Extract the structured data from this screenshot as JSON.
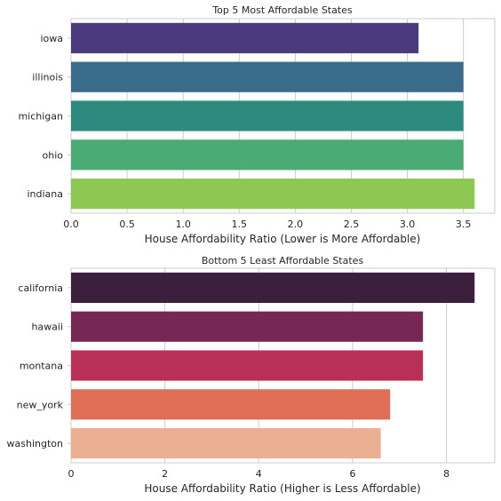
{
  "chart_data": [
    {
      "type": "bar",
      "orientation": "horizontal",
      "title": "Top 5 Most Affordable States",
      "xlabel": "House Affordability Ratio (Lower is More Affordable)",
      "ylabel": "",
      "categories": [
        "iowa",
        "illinois",
        "michigan",
        "ohio",
        "indiana"
      ],
      "values": [
        3.1,
        3.5,
        3.5,
        3.5,
        3.6
      ],
      "xlim": [
        0,
        3.78
      ],
      "xticks": [
        0,
        0.5,
        1.0,
        1.5,
        2.0,
        2.5,
        3.0,
        3.5
      ],
      "xtick_labels": [
        "0.0",
        "0.5",
        "1.0",
        "1.5",
        "2.0",
        "2.5",
        "3.0",
        "3.5"
      ],
      "colors": [
        "#4b3a7e",
        "#3a6b8a",
        "#2c8a7e",
        "#4aab74",
        "#8cc853"
      ],
      "grid": true
    },
    {
      "type": "bar",
      "orientation": "horizontal",
      "title": "Bottom 5 Least Affordable States",
      "xlabel": "House Affordability Ratio (Higher is Less Affordable)",
      "ylabel": "",
      "categories": [
        "california",
        "hawaii",
        "montana",
        "new_york",
        "washington"
      ],
      "values": [
        8.6,
        7.5,
        7.5,
        6.8,
        6.6
      ],
      "xlim": [
        0,
        9.03
      ],
      "xticks": [
        0,
        2,
        4,
        6,
        8
      ],
      "xtick_labels": [
        "0",
        "2",
        "4",
        "6",
        "8"
      ],
      "colors": [
        "#3c1f3c",
        "#762754",
        "#b82f57",
        "#df6e57",
        "#ebaf91"
      ],
      "grid": true
    }
  ]
}
